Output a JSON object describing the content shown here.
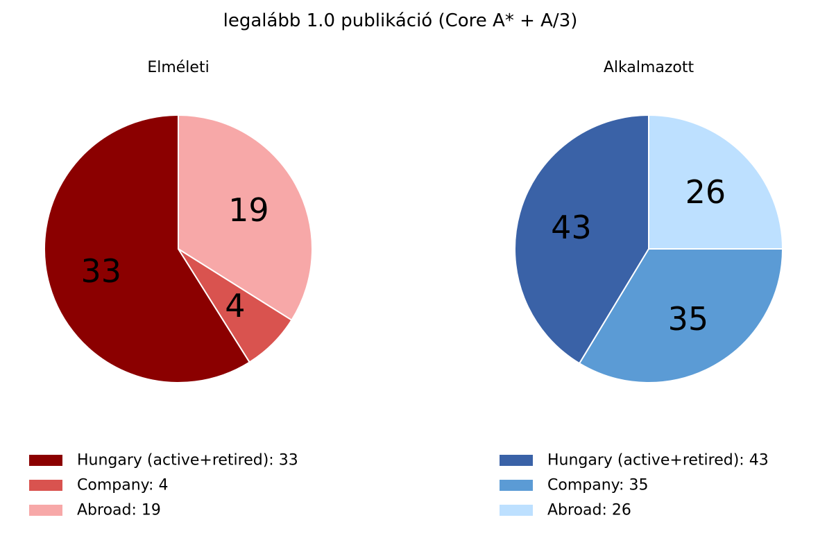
{
  "figure": {
    "title": "legalább 1.0 publikáció (Core A* + A/3)"
  },
  "chart_data": [
    {
      "type": "pie",
      "title": "Elméleti",
      "labels": [
        "Hungary (active+retired)",
        "Company",
        "Abroad"
      ],
      "values": [
        33,
        4,
        19
      ],
      "colors": [
        "#8b0000",
        "#d9534f",
        "#f7a8a8"
      ],
      "legend": [
        "Hungary (active+retired): 33",
        "Company: 4",
        "Abroad: 19"
      ],
      "start_angle_deg": 90,
      "direction": "counterclockwise",
      "legend_position": "bottom-left"
    },
    {
      "type": "pie",
      "title": "Alkalmazott",
      "labels": [
        "Hungary (active+retired)",
        "Company",
        "Abroad"
      ],
      "values": [
        43,
        35,
        26
      ],
      "colors": [
        "#3a62a7",
        "#5b9bd5",
        "#bde0ff"
      ],
      "legend": [
        "Hungary (active+retired): 43",
        "Company: 35",
        "Abroad: 26"
      ],
      "start_angle_deg": 90,
      "direction": "counterclockwise",
      "legend_position": "bottom-right"
    }
  ]
}
